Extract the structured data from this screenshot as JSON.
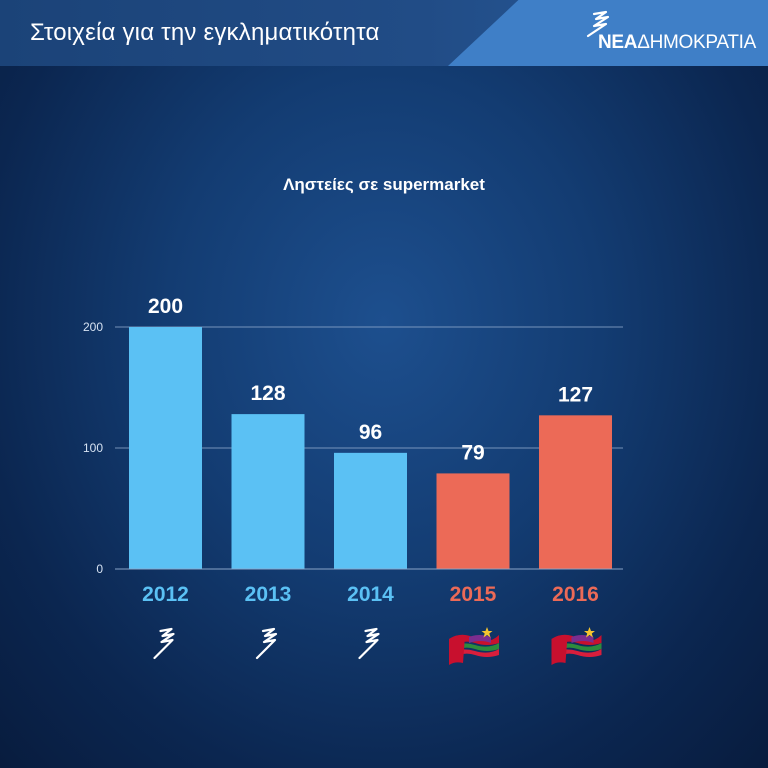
{
  "header": {
    "title": "Στοιχεία για την εγκληματικότητα",
    "logo_bold": "ΝΕΑ",
    "logo_regular": "ΔΗΜΟΚΡΑΤΙΑ"
  },
  "chart_data": {
    "type": "bar",
    "title": "Ληστείες σε supermarket",
    "categories": [
      "2012",
      "2013",
      "2014",
      "2015",
      "2016"
    ],
    "values": [
      200,
      128,
      96,
      79,
      127
    ],
    "data_labels": [
      "200",
      "128",
      "96",
      "79",
      "127"
    ],
    "ylim": [
      0,
      200
    ],
    "yticks": [
      0,
      100,
      200
    ],
    "grid": true,
    "bar_colors": [
      "#5bc1f4",
      "#5bc1f4",
      "#5bc1f4",
      "#ec6a57",
      "#ec6a57"
    ],
    "party_icons": [
      "nd-logo-icon",
      "nd-logo-icon",
      "nd-logo-icon",
      "syriza-flag-icon",
      "syriza-flag-icon"
    ]
  },
  "colors": {
    "blue_bar": "#5bc1f4",
    "red_bar": "#ec6a57",
    "background": "#133c72",
    "header": "#1c4680"
  }
}
